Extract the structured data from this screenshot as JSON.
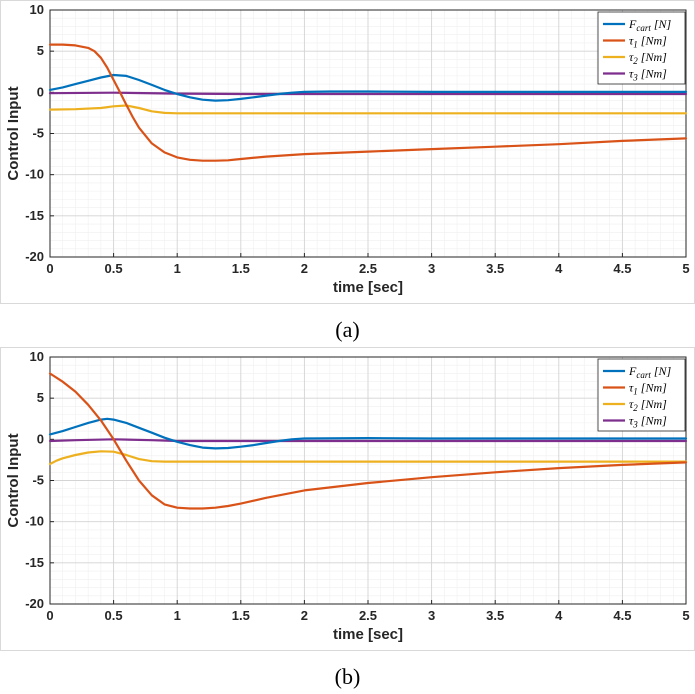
{
  "chart_data": [
    {
      "type": "line",
      "caption": "(a)",
      "xlabel": "time [sec]",
      "ylabel": "Control Input",
      "xlim": [
        0,
        5
      ],
      "ylim": [
        -20,
        10
      ],
      "xticks": [
        "0",
        "0.5",
        "1",
        "1.5",
        "2",
        "2.5",
        "3",
        "3.5",
        "4",
        "4.5",
        "5"
      ],
      "yticks": [
        "10",
        "5",
        "0",
        "-5",
        "-10",
        "-15",
        "-20"
      ],
      "grid": true,
      "legend_position": "top-right",
      "series": [
        {
          "name": "F_cart [N]",
          "color": "#0072BD",
          "x": [
            0,
            0.1,
            0.2,
            0.3,
            0.4,
            0.5,
            0.6,
            0.7,
            0.8,
            0.9,
            1.0,
            1.1,
            1.2,
            1.3,
            1.4,
            1.5,
            1.6,
            1.7,
            1.8,
            1.9,
            2.0,
            2.2,
            2.5,
            3.0,
            3.5,
            4.0,
            4.5,
            5.0
          ],
          "y": [
            0.3,
            0.6,
            1.0,
            1.4,
            1.8,
            2.1,
            2.0,
            1.5,
            0.9,
            0.3,
            -0.2,
            -0.6,
            -0.9,
            -1.0,
            -0.95,
            -0.8,
            -0.6,
            -0.4,
            -0.2,
            -0.05,
            0.05,
            0.1,
            0.1,
            0.05,
            0.05,
            0.05,
            0.05,
            0.05
          ]
        },
        {
          "name": "τ1 [Nm]",
          "color": "#D95319",
          "x": [
            0,
            0.1,
            0.2,
            0.3,
            0.35,
            0.4,
            0.45,
            0.5,
            0.55,
            0.6,
            0.65,
            0.7,
            0.8,
            0.9,
            1.0,
            1.1,
            1.2,
            1.3,
            1.4,
            1.5,
            1.7,
            2.0,
            2.5,
            3.0,
            3.5,
            4.0,
            4.5,
            5.0
          ],
          "y": [
            5.8,
            5.8,
            5.7,
            5.4,
            5.0,
            4.2,
            3.0,
            1.5,
            0,
            -1.5,
            -3.0,
            -4.3,
            -6.2,
            -7.3,
            -7.9,
            -8.2,
            -8.3,
            -8.3,
            -8.25,
            -8.1,
            -7.8,
            -7.5,
            -7.2,
            -6.9,
            -6.6,
            -6.3,
            -5.9,
            -5.6
          ]
        },
        {
          "name": "τ2 [Nm]",
          "color": "#EDB120",
          "x": [
            0,
            0.2,
            0.4,
            0.5,
            0.6,
            0.7,
            0.8,
            0.9,
            1.0,
            1.2,
            1.5,
            2.0,
            3.0,
            4.0,
            5.0
          ],
          "y": [
            -2.1,
            -2.05,
            -1.9,
            -1.7,
            -1.6,
            -1.9,
            -2.3,
            -2.5,
            -2.55,
            -2.55,
            -2.55,
            -2.55,
            -2.55,
            -2.55,
            -2.55
          ]
        },
        {
          "name": "τ3 [Nm]",
          "color": "#7E2F8E",
          "x": [
            0,
            0.5,
            1.0,
            1.5,
            2.0,
            3.0,
            4.0,
            5.0
          ],
          "y": [
            -0.1,
            -0.05,
            -0.15,
            -0.2,
            -0.2,
            -0.2,
            -0.2,
            -0.2
          ]
        }
      ]
    },
    {
      "type": "line",
      "caption": "(b)",
      "xlabel": "time [sec]",
      "ylabel": "Control Input",
      "xlim": [
        0,
        5
      ],
      "ylim": [
        -20,
        10
      ],
      "xticks": [
        "0",
        "0.5",
        "1",
        "1.5",
        "2",
        "2.5",
        "3",
        "3.5",
        "4",
        "4.5",
        "5"
      ],
      "yticks": [
        "10",
        "5",
        "0",
        "-5",
        "-10",
        "-15",
        "-20"
      ],
      "grid": true,
      "legend_position": "top-right",
      "series": [
        {
          "name": "F_cart [N]",
          "color": "#0072BD",
          "x": [
            0,
            0.1,
            0.2,
            0.3,
            0.4,
            0.45,
            0.5,
            0.6,
            0.7,
            0.8,
            0.9,
            1.0,
            1.1,
            1.2,
            1.3,
            1.4,
            1.5,
            1.6,
            1.7,
            1.8,
            1.9,
            2.0,
            2.5,
            3.0,
            4.0,
            5.0
          ],
          "y": [
            0.6,
            1.0,
            1.5,
            2.0,
            2.4,
            2.5,
            2.4,
            2.0,
            1.4,
            0.8,
            0.2,
            -0.3,
            -0.7,
            -1.0,
            -1.1,
            -1.05,
            -0.9,
            -0.7,
            -0.45,
            -0.2,
            0,
            0.1,
            0.15,
            0.1,
            0.1,
            0.1
          ]
        },
        {
          "name": "τ1 [Nm]",
          "color": "#D95319",
          "x": [
            0,
            0.1,
            0.2,
            0.3,
            0.4,
            0.5,
            0.6,
            0.7,
            0.8,
            0.9,
            1.0,
            1.1,
            1.2,
            1.3,
            1.4,
            1.5,
            1.7,
            2.0,
            2.5,
            3.0,
            3.5,
            4.0,
            4.5,
            5.0
          ],
          "y": [
            8.0,
            7.0,
            5.8,
            4.2,
            2.3,
            0,
            -2.6,
            -5.0,
            -6.8,
            -7.9,
            -8.3,
            -8.4,
            -8.4,
            -8.3,
            -8.1,
            -7.8,
            -7.1,
            -6.2,
            -5.3,
            -4.6,
            -4.0,
            -3.5,
            -3.1,
            -2.8
          ]
        },
        {
          "name": "τ2 [Nm]",
          "color": "#EDB120",
          "x": [
            0,
            0.05,
            0.1,
            0.2,
            0.3,
            0.4,
            0.5,
            0.6,
            0.7,
            0.8,
            0.9,
            1.0,
            1.5,
            2.0,
            3.0,
            4.0,
            5.0
          ],
          "y": [
            -3.0,
            -2.6,
            -2.3,
            -1.9,
            -1.6,
            -1.45,
            -1.5,
            -1.9,
            -2.4,
            -2.65,
            -2.7,
            -2.7,
            -2.7,
            -2.7,
            -2.7,
            -2.7,
            -2.7
          ]
        },
        {
          "name": "τ3 [Nm]",
          "color": "#7E2F8E",
          "x": [
            0,
            0.2,
            0.5,
            0.8,
            1.0,
            1.5,
            2.0,
            3.0,
            4.0,
            5.0
          ],
          "y": [
            -0.2,
            -0.1,
            0,
            -0.1,
            -0.2,
            -0.2,
            -0.2,
            -0.2,
            -0.2,
            -0.2
          ]
        }
      ]
    }
  ]
}
